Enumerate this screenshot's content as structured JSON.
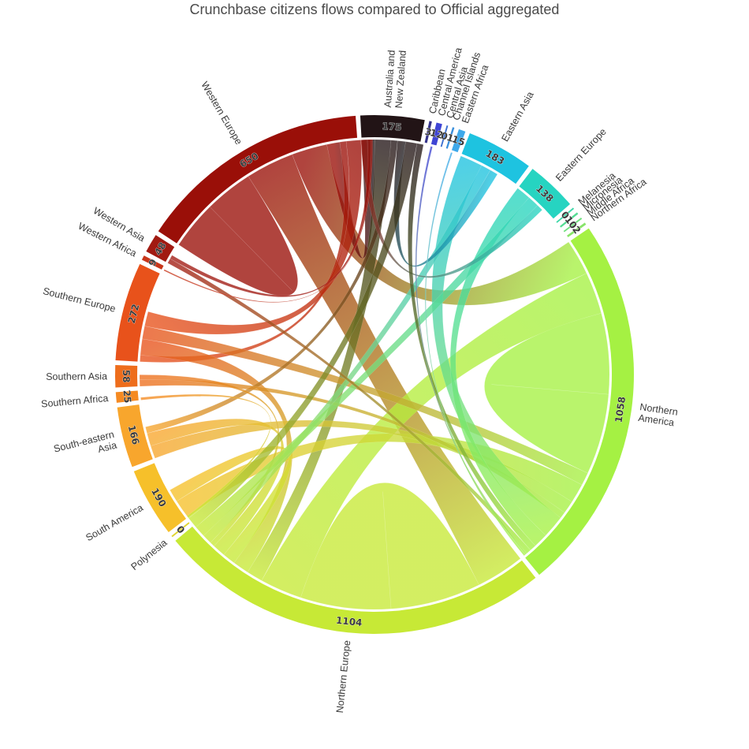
{
  "chart_data": {
    "type": "chord",
    "title": "Crunchbase citizens flows compared to Official aggregated",
    "regions": [
      {
        "name": "Australia and New Zealand",
        "lines": [
          "Australia and",
          "New Zealand"
        ],
        "value": 175,
        "color": "#221416"
      },
      {
        "name": "Caribbean",
        "lines": [
          "Caribbean"
        ],
        "value": 3,
        "color": "#35338a"
      },
      {
        "name": "Central America",
        "lines": [
          "Central America"
        ],
        "value": 12,
        "color": "#3f45d4"
      },
      {
        "name": "Central Asia",
        "lines": [
          "Central Asia"
        ],
        "value": 0,
        "color": "#3b6fd0"
      },
      {
        "name": "Channel Islands",
        "lines": [
          "Channel Islands"
        ],
        "value": 1,
        "color": "#3a8fdc"
      },
      {
        "name": "Eastern Africa",
        "lines": [
          "Eastern Africa"
        ],
        "value": 15,
        "color": "#3ea9ea"
      },
      {
        "name": "Eastern Asia",
        "lines": [
          "Eastern Asia"
        ],
        "value": 183,
        "color": "#1ec3e0"
      },
      {
        "name": "Eastern Europe",
        "lines": [
          "Eastern Europe"
        ],
        "value": 138,
        "color": "#26d4c1"
      },
      {
        "name": "Melanesia",
        "lines": [
          "Melanesia"
        ],
        "value": 0,
        "color": "#3ed8a8"
      },
      {
        "name": "Micronesia",
        "lines": [
          "Micronesia"
        ],
        "value": 1,
        "color": "#55dc94"
      },
      {
        "name": "Middle Africa",
        "lines": [
          "Middle Africa"
        ],
        "value": 0,
        "color": "#6fe07e"
      },
      {
        "name": "Northern Africa",
        "lines": [
          "Northern Africa"
        ],
        "value": 2,
        "color": "#88e46a"
      },
      {
        "name": "Northern America",
        "lines": [
          "Northern",
          "America"
        ],
        "value": 1058,
        "color": "#a5f143"
      },
      {
        "name": "Northern Europe",
        "lines": [
          "Northern Europe"
        ],
        "value": 1104,
        "color": "#c7e936"
      },
      {
        "name": "Polynesia",
        "lines": [
          "Polynesia"
        ],
        "value": 0,
        "color": "#e0d630"
      },
      {
        "name": "South America",
        "lines": [
          "South America"
        ],
        "value": 190,
        "color": "#f6c02a"
      },
      {
        "name": "South-eastern Asia",
        "lines": [
          "South-eastern",
          "Asia"
        ],
        "value": 166,
        "color": "#f8a62d"
      },
      {
        "name": "Southern Africa",
        "lines": [
          "Southern Africa"
        ],
        "value": 25,
        "color": "#f58a22"
      },
      {
        "name": "Southern Asia",
        "lines": [
          "Southern Asia"
        ],
        "value": 58,
        "color": "#ee6d1c"
      },
      {
        "name": "Southern Europe",
        "lines": [
          "Southern Europe"
        ],
        "value": 272,
        "color": "#e8521b"
      },
      {
        "name": "Western Africa",
        "lines": [
          "Western Africa"
        ],
        "value": 9,
        "color": "#c8361a"
      },
      {
        "name": "Western Asia",
        "lines": [
          "Western Asia"
        ],
        "value": 48,
        "color": "#a11a12"
      },
      {
        "name": "Western Europe",
        "lines": [
          "Western Europe"
        ],
        "value": 650,
        "color": "#9a0f08"
      }
    ],
    "flows": [
      {
        "from": "Western Europe",
        "to": "Western Europe",
        "value": 150
      },
      {
        "from": "Western Europe",
        "to": "Northern Europe",
        "value": 150
      },
      {
        "from": "Western Europe",
        "to": "Northern America",
        "value": 110
      },
      {
        "from": "Western Europe",
        "to": "Australia and New Zealand",
        "value": 40
      },
      {
        "from": "Western Europe",
        "to": "Southern Europe",
        "value": 20
      },
      {
        "from": "Northern Europe",
        "to": "Northern Europe",
        "value": 280
      },
      {
        "from": "Northern Europe",
        "to": "Northern America",
        "value": 130
      },
      {
        "from": "Northern Europe",
        "to": "Australia and New Zealand",
        "value": 50
      },
      {
        "from": "Northern America",
        "to": "Northern America",
        "value": 250
      },
      {
        "from": "Southern Europe",
        "to": "Northern Europe",
        "value": 50
      },
      {
        "from": "Southern Europe",
        "to": "Northern America",
        "value": 40
      },
      {
        "from": "Southern Europe",
        "to": "Western Europe",
        "value": 45
      },
      {
        "from": "South America",
        "to": "Northern America",
        "value": 60
      },
      {
        "from": "South America",
        "to": "Northern Europe",
        "value": 40
      },
      {
        "from": "South-eastern Asia",
        "to": "Northern America",
        "value": 40
      },
      {
        "from": "South-eastern Asia",
        "to": "Northern Europe",
        "value": 40
      },
      {
        "from": "South-eastern Asia",
        "to": "Australia and New Zealand",
        "value": 20
      },
      {
        "from": "Southern Asia",
        "to": "Northern America",
        "value": 20
      },
      {
        "from": "Southern Asia",
        "to": "Northern Europe",
        "value": 15
      },
      {
        "from": "Eastern Asia",
        "to": "Northern America",
        "value": 70
      },
      {
        "from": "Eastern Asia",
        "to": "Northern Europe",
        "value": 30
      },
      {
        "from": "Eastern Asia",
        "to": "Australia and New Zealand",
        "value": 25
      },
      {
        "from": "Eastern Europe",
        "to": "Northern America",
        "value": 45
      },
      {
        "from": "Eastern Europe",
        "to": "Northern Europe",
        "value": 35
      },
      {
        "from": "Eastern Europe",
        "to": "Western Europe",
        "value": 20
      },
      {
        "from": "Australia and New Zealand",
        "to": "Northern Europe",
        "value": 35
      },
      {
        "from": "Australia and New Zealand",
        "to": "Northern America",
        "value": 20
      },
      {
        "from": "Western Asia",
        "to": "Northern America",
        "value": 15
      },
      {
        "from": "Western Asia",
        "to": "Western Europe",
        "value": 12
      },
      {
        "from": "Southern Africa",
        "to": "Northern Europe",
        "value": 8
      },
      {
        "from": "Central America",
        "to": "Northern America",
        "value": 6
      },
      {
        "from": "Eastern Africa",
        "to": "Northern America",
        "value": 5
      },
      {
        "from": "Western Africa",
        "to": "Western Europe",
        "value": 4
      }
    ]
  }
}
